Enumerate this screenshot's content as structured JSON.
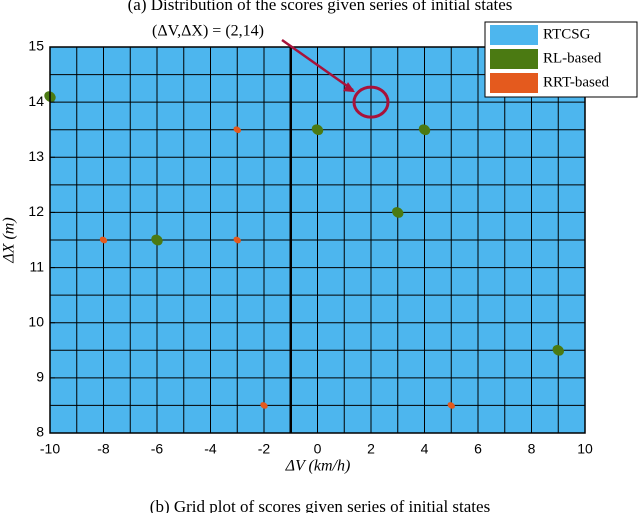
{
  "chart_data": {
    "type": "grid",
    "title": "(a) Distribution of the scores given series of initial states",
    "caption": "(b) Grid plot of scores given series of initial states",
    "xlabel": "ΔV (km/h)",
    "ylabel": "ΔX (m)",
    "xlim": [
      -10,
      10
    ],
    "ylim": [
      8,
      15
    ],
    "xticks": [
      -10,
      -8,
      -6,
      -4,
      -2,
      0,
      2,
      4,
      6,
      8,
      10
    ],
    "yticks": [
      8,
      9,
      10,
      11,
      12,
      13,
      14,
      15
    ],
    "x_grid": [
      -10,
      -9,
      -8,
      -7,
      -6,
      -5,
      -4,
      -3,
      -2,
      -1,
      0,
      1,
      2,
      3,
      4,
      5,
      6,
      7,
      8,
      9,
      10
    ],
    "y_grid": [
      8,
      8.5,
      9,
      9.5,
      10,
      10.5,
      11,
      11.5,
      12,
      12.5,
      13,
      13.5,
      14,
      14.5,
      15
    ],
    "divider_x": -1,
    "legend": "upper right",
    "series": [
      {
        "name": "RTCSG",
        "color": "#4db6ee",
        "x": [],
        "y": []
      },
      {
        "name": "RL-based",
        "color": "#4b7a12",
        "x": [
          -10,
          0,
          4,
          -6,
          3,
          9
        ],
        "y": [
          14.1,
          13.5,
          13.5,
          11.5,
          12,
          9.5
        ]
      },
      {
        "name": "RRT-based",
        "color": "#e45a1e",
        "x": [
          -3,
          -8,
          -3,
          5,
          -2
        ],
        "y": [
          13.5,
          11.5,
          11.5,
          8.5,
          8.5
        ]
      }
    ],
    "annotation": {
      "text": "(ΔV,ΔX) = (2,14)",
      "x": 2,
      "y": 14,
      "color": "#a8123a"
    }
  }
}
